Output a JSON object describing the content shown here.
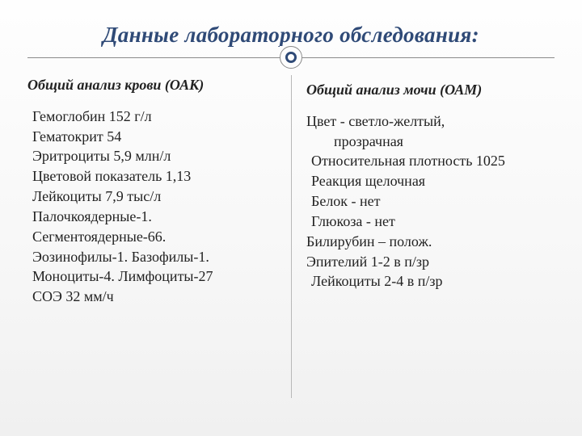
{
  "title": "Данные лабораторного обследования:",
  "colors": {
    "title": "#2f4a77",
    "accent_ring": "#2f4a77",
    "rule": "#8a8a8a",
    "divider": "#b8b8b8",
    "text": "#222222",
    "bg_top": "#fefefe",
    "bg_bottom": "#f0f0f0"
  },
  "typography": {
    "title_fontsize_pt": 20,
    "body_fontsize_pt": 13,
    "font_family": "Georgia / serif",
    "title_style": "bold italic",
    "subhead_style": "bold italic"
  },
  "layout": {
    "columns": 2,
    "column_divider": true,
    "circle_accent_on_rule": true
  },
  "left": {
    "heading": "Общий анализ крови (ОАК)",
    "lines": [
      " Гемоглобин 152 г/л",
      " Гематокрит 54",
      " Эритроциты 5,9 млн/л",
      " Цветовой показатель 1,13",
      " Лейкоциты 7,9 тыс/л",
      " Палочкоядерные-1.",
      "Сегментоядерные-66.",
      "Эозинофилы-1. Базофилы-1.",
      "Моноциты-4.  Лимфоциты-27",
      "СОЭ 32 мм/ч"
    ]
  },
  "right": {
    "heading": "Общий анализ мочи (ОАМ)",
    "lines": [
      {
        "t": "Цвет - светло-желтый,",
        "cls": "item-flush"
      },
      {
        "t": "прозрачная",
        "cls": "indent2"
      },
      {
        "t": " Относительная плотность 1025",
        "cls": "item"
      },
      {
        "t": " Реакция щелочная",
        "cls": "item"
      },
      {
        "t": " Белок - нет",
        "cls": "item"
      },
      {
        "t": " Глюкоза - нет",
        "cls": "item"
      },
      {
        "t": "Билирубин – полож.",
        "cls": "item-flush"
      },
      {
        "t": "Эпителий 1-2 в п/зр",
        "cls": "item-flush"
      },
      {
        "t": " Лейкоциты 2-4 в п/зр",
        "cls": "item"
      }
    ]
  }
}
